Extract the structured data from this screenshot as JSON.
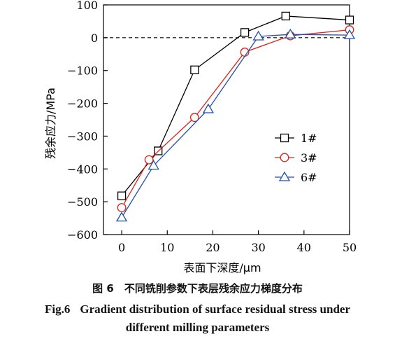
{
  "chart_data": {
    "type": "line",
    "xlabel": "表面下深度/μm",
    "ylabel": "残余应力/MPa",
    "xlim": [
      -4,
      50
    ],
    "ylim": [
      -600,
      100
    ],
    "xticks": [
      0,
      10,
      20,
      30,
      40,
      50
    ],
    "yticks": [
      100,
      0,
      -100,
      -200,
      -300,
      -400,
      -500,
      -600
    ],
    "ytick_labels": [
      "100",
      "0",
      "−100",
      "−200",
      "−300",
      "−400",
      "−500",
      "−600"
    ],
    "zero_reference_line": "dashed",
    "grid": false,
    "legend_position": "right",
    "series": [
      {
        "name": "1#",
        "color": "#000000",
        "marker": "square",
        "x": [
          0,
          8,
          16,
          27,
          36,
          50
        ],
        "y": [
          -482,
          -345,
          -98,
          16,
          66,
          54
        ]
      },
      {
        "name": "3#",
        "color": "#e0201b",
        "marker": "circle",
        "x": [
          0,
          6,
          16,
          27,
          37,
          50
        ],
        "y": [
          -518,
          -372,
          -243,
          -44,
          6,
          24
        ]
      },
      {
        "name": "6#",
        "color": "#1f4fa8",
        "marker": "triangle",
        "x": [
          0,
          7,
          19,
          30,
          37,
          50
        ],
        "y": [
          -548,
          -390,
          -218,
          4,
          10,
          8
        ]
      }
    ]
  },
  "caption": {
    "cn": "图 6　不同铣削参数下表层残余应力梯度分布",
    "en_figno": "Fig.6",
    "en_line1": "Gradient distribution of surface residual stress under",
    "en_line2": "different milling parameters"
  }
}
